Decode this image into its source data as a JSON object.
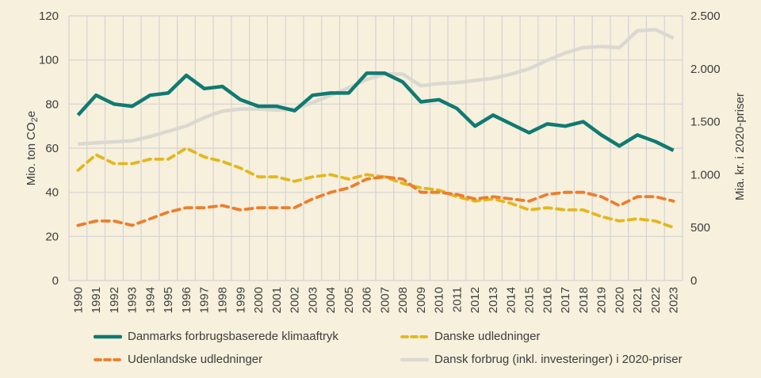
{
  "colors": {
    "background": "#f6f0dd",
    "gridline": "#d5d3d3",
    "text": "#3d3d3b",
    "teal": "#107a71",
    "yellow": "#e3b71d",
    "orange": "#ee7d2c",
    "gray": "#dbd8d1"
  },
  "y_axis_left": {
    "title_prefix": "Mio. ton CO",
    "title_sub": "2",
    "title_suffix": "e",
    "tick_labels": [
      "0",
      "20",
      "40",
      "60",
      "80",
      "100",
      "120"
    ],
    "tick_values": [
      0,
      20,
      40,
      60,
      80,
      100,
      120
    ]
  },
  "y_axis_right": {
    "title": "Mia. kr. i 2020-priser",
    "tick_labels": [
      "0",
      "500",
      "1.000",
      "1.500",
      "2.000",
      "2.500"
    ],
    "tick_values": [
      0,
      500,
      1000,
      1500,
      2000,
      2500
    ]
  },
  "chart_data": {
    "type": "line",
    "x": [
      "1990",
      "1991",
      "1992",
      "1993",
      "1994",
      "1995",
      "1996",
      "1997",
      "1998",
      "1999",
      "2000",
      "2001",
      "2002",
      "2003",
      "2004",
      "2005",
      "2006",
      "2007",
      "2008",
      "2009",
      "2010",
      "2011",
      "2012",
      "2013",
      "2014",
      "2015",
      "2016",
      "2017",
      "2018",
      "2019",
      "2020",
      "2021",
      "2022",
      "2023"
    ],
    "xlabel": "",
    "ylabel_left": "Mio. ton CO2e",
    "ylabel_right": "Mia. kr. i 2020-priser",
    "ylim_left": [
      0,
      120
    ],
    "ylim_right": [
      0,
      2500
    ],
    "grid": true,
    "legend_position": "bottom",
    "draw_order": [
      3,
      0,
      1,
      2
    ],
    "series": [
      {
        "name": "Danmarks forbrugsbaserede klimaaftryk",
        "axis": "left",
        "style": "solid",
        "color_key": "teal",
        "values": [
          75,
          84,
          80,
          79,
          84,
          85,
          93,
          87,
          88,
          82,
          79,
          79,
          77,
          84,
          85,
          85,
          94,
          94,
          90,
          81,
          82,
          78,
          70,
          75,
          71,
          67,
          71,
          70,
          72,
          66,
          61,
          66,
          63,
          59
        ]
      },
      {
        "name": "Danske udledninger",
        "axis": "left",
        "style": "dashed",
        "color_key": "yellow",
        "values": [
          50,
          57,
          53,
          53,
          55,
          55,
          60,
          56,
          54,
          51,
          47,
          47,
          45,
          47,
          48,
          46,
          48,
          47,
          44,
          42,
          41,
          38,
          36,
          37,
          35,
          32,
          33,
          32,
          32,
          29,
          27,
          28,
          27,
          24
        ]
      },
      {
        "name": "Udenlandske udledninger",
        "axis": "left",
        "style": "dashed",
        "color_key": "orange",
        "values": [
          25,
          27,
          27,
          25,
          28,
          31,
          33,
          33,
          34,
          32,
          33,
          33,
          33,
          37,
          40,
          42,
          46,
          47,
          46,
          40,
          40,
          39,
          37,
          38,
          37,
          36,
          39,
          40,
          40,
          38,
          34,
          38,
          38,
          36
        ]
      },
      {
        "name": "Dansk forbrug (inkl. investeringer) i 2020-priser",
        "axis": "right",
        "style": "solid",
        "color_key": "gray",
        "values": [
          1290,
          1300,
          1310,
          1320,
          1360,
          1410,
          1460,
          1540,
          1600,
          1620,
          1620,
          1610,
          1620,
          1680,
          1750,
          1820,
          1900,
          1950,
          1950,
          1840,
          1860,
          1870,
          1890,
          1910,
          1950,
          2000,
          2080,
          2150,
          2200,
          2210,
          2200,
          2360,
          2370,
          2290
        ]
      }
    ]
  },
  "legend": {
    "order": [
      0,
      1,
      2,
      3
    ]
  }
}
